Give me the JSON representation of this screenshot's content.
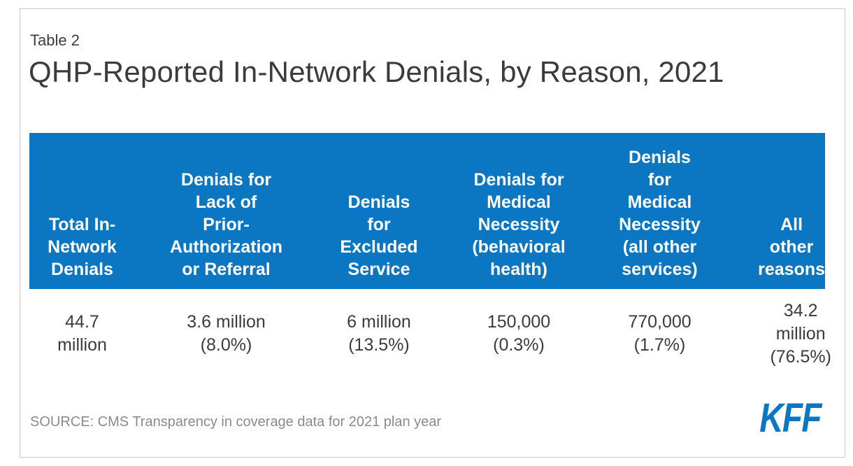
{
  "colors": {
    "header_bg": "#0B76C2",
    "header_text": "#FFFFFF",
    "body_text": "#3B3B3B",
    "source_text": "#8A8A8A",
    "logo_blue": "#0B76C2",
    "card_border": "#C9C9C9"
  },
  "card": {
    "eyebrow": "Table 2",
    "title": "QHP-Reported In-Network Denials, by Reason, 2021",
    "source": "SOURCE: CMS Transparency in coverage data for 2021 plan year",
    "logo_text": "KFF"
  },
  "table": {
    "headers": [
      "Total In-\nNetwork\nDenials",
      "Denials for\nLack of\nPrior-\nAuthorization\nor Referral",
      "Denials\nfor\nExcluded\nService",
      "Denials for\nMedical\nNecessity\n(behavioral\nhealth)",
      "Denials\nfor\nMedical\nNecessity\n(all other\nservices)",
      "All\nother\nreasons"
    ],
    "values": [
      "44.7\nmillion",
      "3.6 million\n(8.0%)",
      "6 million\n(13.5%)",
      "150,000\n(0.3%)",
      "770,000\n(1.7%)",
      "34.2\nmillion\n(76.5%)"
    ]
  },
  "chart_data": {
    "type": "table",
    "title": "QHP-Reported In-Network Denials, by Reason, 2021",
    "table_label": "Table 2",
    "columns": [
      "Total In-Network Denials",
      "Denials for Lack of Prior-Authorization or Referral",
      "Denials for Excluded Service",
      "Denials for Medical Necessity (behavioral health)",
      "Denials for Medical Necessity (all other services)",
      "All other reasons"
    ],
    "rows": [
      [
        "44.7 million",
        "3.6 million (8.0%)",
        "6 million (13.5%)",
        "150,000 (0.3%)",
        "770,000 (1.7%)",
        "34.2 million (76.5%)"
      ]
    ],
    "values_numeric": [
      44700000,
      3600000,
      6000000,
      150000,
      770000,
      34200000
    ],
    "percents": [
      null,
      8.0,
      13.5,
      0.3,
      1.7,
      76.5
    ],
    "source": "SOURCE: CMS Transparency in coverage data for 2021 plan year"
  }
}
